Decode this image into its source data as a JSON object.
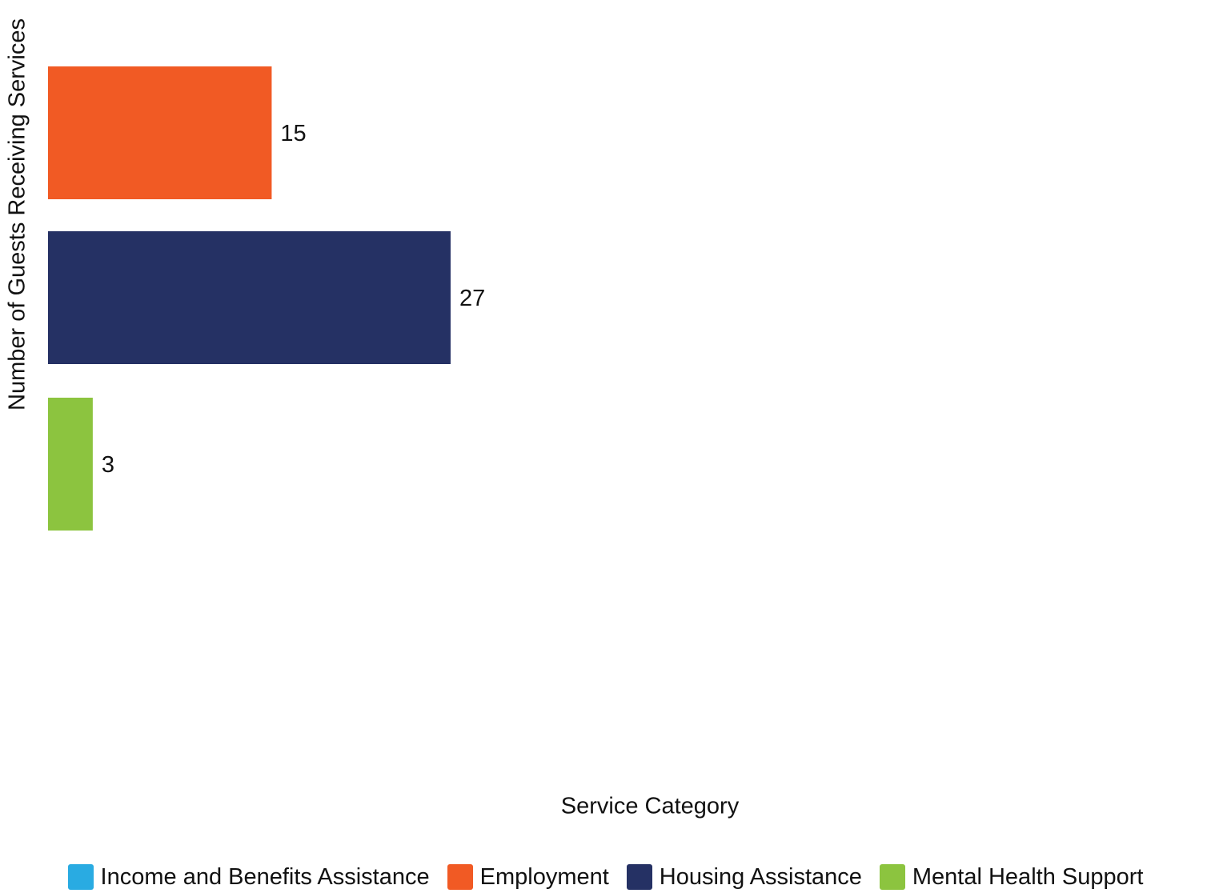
{
  "chart_data": {
    "type": "bar",
    "orientation": "horizontal",
    "xlabel": "Service Category",
    "ylabel": "Number of Guests Receiving Services",
    "categories": [
      "Income and Benefits Assistance",
      "Employment",
      "Housing Assistance",
      "Mental Health Support"
    ],
    "values": [
      0,
      15,
      27,
      3
    ],
    "data_labels": [
      "",
      "15",
      "27",
      "3"
    ],
    "colors": [
      "#29abe2",
      "#f15a24",
      "#253164",
      "#8cc43f"
    ],
    "xlim": [
      0,
      78
    ],
    "grid": false,
    "legend": {
      "placement": "bottom",
      "entries": [
        {
          "label": "Income and Benefits Assistance",
          "color": "#29abe2"
        },
        {
          "label": "Employment",
          "color": "#f15a24"
        },
        {
          "label": "Housing Assistance",
          "color": "#253164"
        },
        {
          "label": "Mental Health Support",
          "color": "#8cc43f"
        }
      ]
    }
  }
}
